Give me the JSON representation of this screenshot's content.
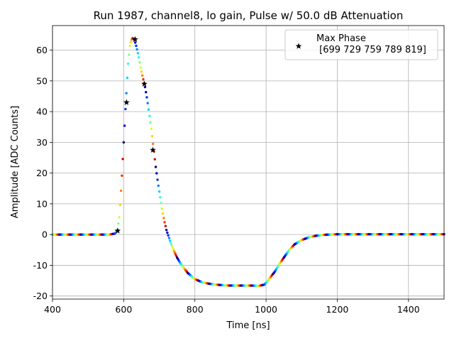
{
  "chart_data": {
    "type": "scatter",
    "title": "Run 1987, channel8, lo gain, Pulse w/ 50.0 dB Attenuation",
    "xlabel": "Time [ns]",
    "ylabel": "Amplitude [ADC Counts]",
    "xlim": [
      400,
      1500
    ],
    "ylim": [
      -21,
      68
    ],
    "xticks": [
      400,
      600,
      800,
      1000,
      1200,
      1400
    ],
    "yticks": [
      -20,
      -10,
      0,
      10,
      20,
      30,
      40,
      50,
      60
    ],
    "grid": true,
    "legend_position": "top-right",
    "colormap": "jet",
    "waveform": {
      "name": "",
      "x": [
        400,
        420,
        440,
        460,
        480,
        500,
        520,
        540,
        560,
        575,
        582,
        588,
        594,
        600,
        606,
        612,
        618,
        624,
        630,
        636,
        642,
        648,
        654,
        660,
        666,
        672,
        678,
        684,
        690,
        696,
        702,
        708,
        714,
        720,
        730,
        740,
        750,
        760,
        770,
        780,
        790,
        800,
        820,
        840,
        860,
        880,
        900,
        920,
        940,
        960,
        980,
        995,
        1005,
        1015,
        1025,
        1035,
        1050,
        1065,
        1080,
        1100,
        1120,
        1140,
        1160,
        1180,
        1200,
        1220,
        1250,
        1280,
        1320,
        1360,
        1400,
        1440,
        1480,
        1500
      ],
      "y": [
        0,
        0,
        0,
        0,
        0,
        0,
        0,
        0,
        0,
        0.3,
        1.2,
        6,
        17,
        30,
        43,
        55,
        62,
        64,
        63.5,
        61,
        58,
        54,
        51,
        48,
        44,
        39,
        34,
        28,
        22,
        17,
        12.5,
        8,
        4.5,
        1.5,
        -2,
        -5,
        -7.5,
        -9.5,
        -11,
        -12.5,
        -13.5,
        -14.5,
        -15.5,
        -16,
        -16.3,
        -16.5,
        -16.6,
        -16.6,
        -16.6,
        -16.6,
        -16.7,
        -16.3,
        -15,
        -13.5,
        -12,
        -10,
        -7.5,
        -5,
        -3.2,
        -1.8,
        -0.9,
        -0.4,
        -0.1,
        0,
        0.1,
        0.1,
        0.1,
        0.1,
        0.1,
        0.1,
        0.1,
        0.1,
        0.1,
        0.1
      ]
    },
    "markers": {
      "name": "Max Phase\n [699 729 759 789 819]",
      "symbol": "star",
      "x": [
        583,
        608,
        632,
        658,
        682
      ],
      "y": [
        1.2,
        43,
        63.5,
        49,
        27.5
      ]
    },
    "legend": {
      "label_line1": "Max Phase",
      "label_line2": " [699 729 759 789 819]"
    }
  }
}
